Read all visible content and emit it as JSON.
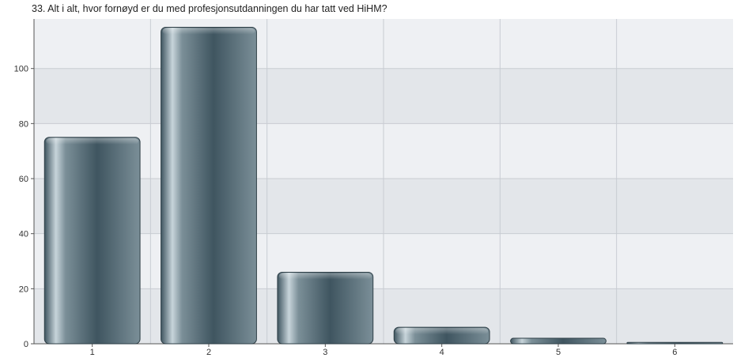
{
  "chart_data": {
    "type": "bar",
    "title": "33. Alt i alt, hvor fornøyd er du med profesjonsutdanningen du har tatt ved HiHM?",
    "xlabel": "",
    "ylabel": "",
    "categories": [
      "1",
      "2",
      "3",
      "4",
      "5",
      "6"
    ],
    "values": [
      75,
      115,
      26,
      6,
      2,
      0.5
    ],
    "ylim": [
      0,
      118
    ],
    "yticks": [
      0,
      20,
      40,
      60,
      80,
      100
    ],
    "grid": true,
    "legend": "none",
    "colors": {
      "bar_dark": "#3f5560",
      "bar_mid": "#7b8f98",
      "bar_highlight": "#c7d4da",
      "band_light": "#eef0f3",
      "band_dark": "#e3e6ea",
      "gridline": "#c8ccd2"
    }
  }
}
